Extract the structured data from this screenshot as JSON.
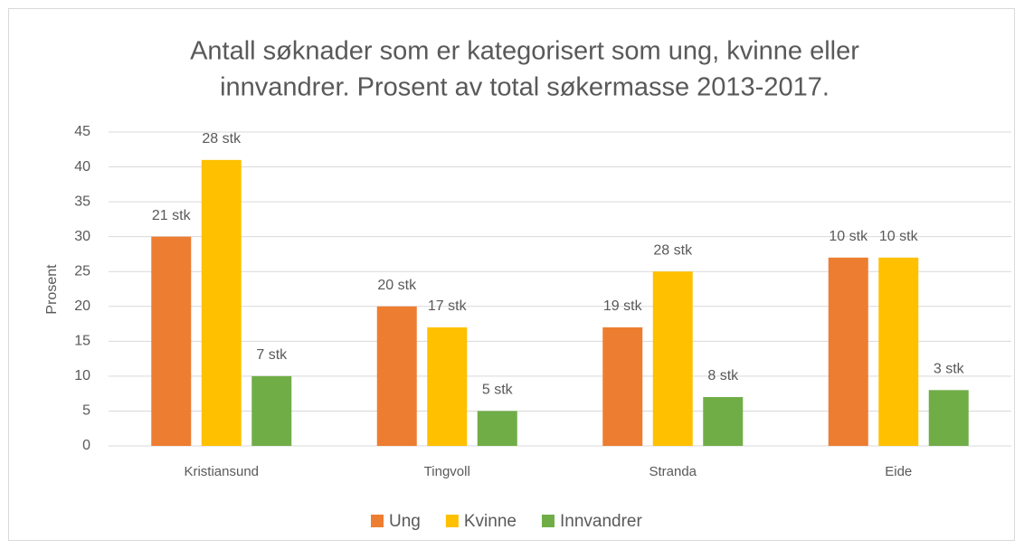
{
  "chart_data": {
    "type": "bar",
    "title": [
      "Antall søknader som er kategorisert som ung, kvinne eller",
      "innvandrer. Prosent av total søkermasse 2013-2017."
    ],
    "y_label": "Prosent",
    "categories": [
      "Kristiansund",
      "Tingvoll",
      "Stranda",
      "Eide"
    ],
    "series": [
      {
        "name": "Ung",
        "color": "#ed7d31",
        "values": [
          30,
          20,
          17,
          27
        ],
        "count_labels": [
          "21 stk",
          "20 stk",
          "19 stk",
          "10 stk"
        ]
      },
      {
        "name": "Kvinne",
        "color": "#ffc000",
        "values": [
          41,
          17,
          25,
          27
        ],
        "count_labels": [
          "28 stk",
          "17 stk",
          "28 stk",
          "10 stk"
        ]
      },
      {
        "name": "Innvandrer",
        "color": "#70ad47",
        "values": [
          10,
          5,
          7,
          8
        ],
        "count_labels": [
          "7 stk",
          "5 stk",
          "8 stk",
          "3 stk"
        ]
      }
    ],
    "ylim": [
      0,
      45
    ],
    "yticks": [
      0,
      5,
      10,
      15,
      20,
      25,
      30,
      35,
      40,
      45
    ],
    "grid": true,
    "legend": "bottom"
  }
}
